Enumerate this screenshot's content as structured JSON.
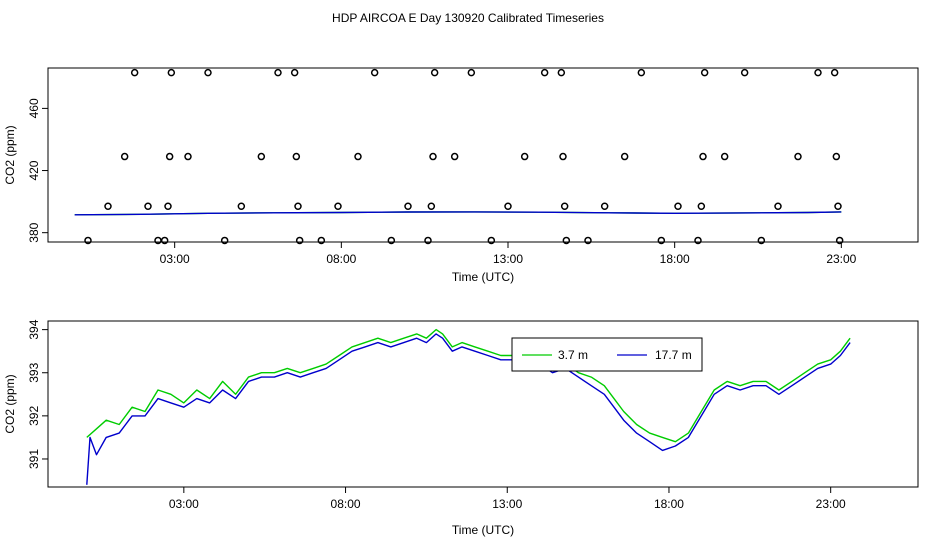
{
  "title": "HDP AIRCOA E  Day 130920  Calibrated Timeseries",
  "colors": {
    "green": "#00cc00",
    "blue": "#0000cc",
    "black": "#000000"
  },
  "chart_data": [
    {
      "type": "scatter",
      "xlabel": "Time (UTC)",
      "ylabel": "CO2 (ppm)",
      "x_ticks": [
        3,
        8,
        13,
        18,
        23
      ],
      "x_tick_labels": [
        "03:00",
        "08:00",
        "13:00",
        "18:00",
        "23:00"
      ],
      "y_ticks": [
        380,
        420,
        460
      ],
      "y_tick_labels": [
        "380",
        "420",
        "460"
      ],
      "xlim": [
        -0.8,
        25.3
      ],
      "ylim": [
        374,
        486
      ],
      "grid": false,
      "points": [
        {
          "x": 0.4,
          "y": 375
        },
        {
          "x": 1.0,
          "y": 397
        },
        {
          "x": 1.5,
          "y": 429
        },
        {
          "x": 1.8,
          "y": 483
        },
        {
          "x": 2.2,
          "y": 397
        },
        {
          "x": 2.5,
          "y": 375
        },
        {
          "x": 2.7,
          "y": 375
        },
        {
          "x": 2.8,
          "y": 397
        },
        {
          "x": 2.85,
          "y": 429
        },
        {
          "x": 2.9,
          "y": 483
        },
        {
          "x": 3.4,
          "y": 429
        },
        {
          "x": 4.0,
          "y": 483
        },
        {
          "x": 4.5,
          "y": 375
        },
        {
          "x": 5.0,
          "y": 397
        },
        {
          "x": 5.6,
          "y": 429
        },
        {
          "x": 6.1,
          "y": 483
        },
        {
          "x": 6.6,
          "y": 483
        },
        {
          "x": 6.65,
          "y": 429
        },
        {
          "x": 6.7,
          "y": 397
        },
        {
          "x": 6.75,
          "y": 375
        },
        {
          "x": 7.4,
          "y": 375
        },
        {
          "x": 7.9,
          "y": 397
        },
        {
          "x": 8.5,
          "y": 429
        },
        {
          "x": 9.0,
          "y": 483
        },
        {
          "x": 9.5,
          "y": 375
        },
        {
          "x": 10.0,
          "y": 397
        },
        {
          "x": 10.6,
          "y": 375
        },
        {
          "x": 10.7,
          "y": 397
        },
        {
          "x": 10.75,
          "y": 429
        },
        {
          "x": 10.8,
          "y": 483
        },
        {
          "x": 11.4,
          "y": 429
        },
        {
          "x": 11.9,
          "y": 483
        },
        {
          "x": 12.5,
          "y": 375
        },
        {
          "x": 13.0,
          "y": 397
        },
        {
          "x": 13.5,
          "y": 429
        },
        {
          "x": 14.1,
          "y": 483
        },
        {
          "x": 14.6,
          "y": 483
        },
        {
          "x": 14.65,
          "y": 429
        },
        {
          "x": 14.7,
          "y": 397
        },
        {
          "x": 14.75,
          "y": 375
        },
        {
          "x": 15.4,
          "y": 375
        },
        {
          "x": 15.9,
          "y": 397
        },
        {
          "x": 16.5,
          "y": 429
        },
        {
          "x": 17.0,
          "y": 483
        },
        {
          "x": 17.6,
          "y": 375
        },
        {
          "x": 18.1,
          "y": 397
        },
        {
          "x": 18.7,
          "y": 375
        },
        {
          "x": 18.8,
          "y": 397
        },
        {
          "x": 18.85,
          "y": 429
        },
        {
          "x": 18.9,
          "y": 483
        },
        {
          "x": 19.5,
          "y": 429
        },
        {
          "x": 20.1,
          "y": 483
        },
        {
          "x": 20.6,
          "y": 375
        },
        {
          "x": 21.1,
          "y": 397
        },
        {
          "x": 21.7,
          "y": 429
        },
        {
          "x": 22.3,
          "y": 483
        },
        {
          "x": 22.8,
          "y": 483
        },
        {
          "x": 22.85,
          "y": 429
        },
        {
          "x": 22.9,
          "y": 397
        },
        {
          "x": 22.95,
          "y": 375
        }
      ],
      "series": [
        {
          "color": "#00cc00",
          "x": [
            0,
            2,
            4,
            6,
            8,
            10,
            12,
            14,
            16,
            18,
            20,
            22,
            23
          ],
          "values": [
            391.5,
            391.8,
            392.5,
            392.8,
            393.0,
            393.3,
            393.4,
            393.2,
            392.8,
            392.5,
            392.7,
            393.0,
            393.4
          ]
        },
        {
          "color": "#0000cc",
          "x": [
            0,
            2,
            4,
            6,
            8,
            10,
            12,
            14,
            16,
            18,
            20,
            22,
            23
          ],
          "values": [
            391.5,
            391.8,
            392.5,
            392.8,
            393.0,
            393.3,
            393.4,
            393.2,
            392.8,
            392.5,
            392.7,
            393.0,
            393.4
          ]
        }
      ]
    },
    {
      "type": "line",
      "xlabel": "Time (UTC)",
      "ylabel": "CO2 (ppm)",
      "x_ticks": [
        3,
        8,
        13,
        18,
        23
      ],
      "x_tick_labels": [
        "03:00",
        "08:00",
        "13:00",
        "18:00",
        "23:00"
      ],
      "y_ticks": [
        391,
        392,
        393,
        394
      ],
      "y_tick_labels": [
        "391",
        "392",
        "393",
        "394"
      ],
      "xlim": [
        -1.2,
        25.7
      ],
      "ylim": [
        390.35,
        394.2
      ],
      "grid": false,
      "legend": {
        "position": "top-center",
        "entries": [
          {
            "label": "3.7 m",
            "color": "#00cc00"
          },
          {
            "label": "17.7 m",
            "color": "#0000cc"
          }
        ]
      },
      "series": [
        {
          "name": "3.7 m",
          "color": "#00cc00",
          "x": [
            0.0,
            0.3,
            0.6,
            1.0,
            1.4,
            1.8,
            2.2,
            2.6,
            3.0,
            3.4,
            3.8,
            4.2,
            4.6,
            5.0,
            5.4,
            5.8,
            6.2,
            6.6,
            7.0,
            7.4,
            7.8,
            8.2,
            8.6,
            9.0,
            9.4,
            9.8,
            10.2,
            10.5,
            10.8,
            11.0,
            11.3,
            11.6,
            12.0,
            12.4,
            12.8,
            13.2,
            13.6,
            14.0,
            14.4,
            14.8,
            15.2,
            15.6,
            16.0,
            16.3,
            16.6,
            17.0,
            17.4,
            17.8,
            18.2,
            18.6,
            19.0,
            19.4,
            19.8,
            20.2,
            20.6,
            21.0,
            21.4,
            21.8,
            22.2,
            22.6,
            23.0,
            23.3,
            23.6
          ],
          "values": [
            391.5,
            391.7,
            391.9,
            391.8,
            392.2,
            392.1,
            392.6,
            392.5,
            392.3,
            392.6,
            392.4,
            392.8,
            392.5,
            392.9,
            393.0,
            393.0,
            393.1,
            393.0,
            393.1,
            393.2,
            393.4,
            393.6,
            393.7,
            393.8,
            393.7,
            393.8,
            393.9,
            393.8,
            394.0,
            393.9,
            393.6,
            393.7,
            393.6,
            393.5,
            393.4,
            393.4,
            393.2,
            393.3,
            393.1,
            393.2,
            393.0,
            392.9,
            392.7,
            392.4,
            392.1,
            391.8,
            391.6,
            391.5,
            391.4,
            391.6,
            392.1,
            392.6,
            392.8,
            392.7,
            392.8,
            392.8,
            392.6,
            392.8,
            393.0,
            393.2,
            393.3,
            393.5,
            393.8
          ]
        },
        {
          "name": "17.7 m",
          "color": "#0000cc",
          "x": [
            0.0,
            0.1,
            0.3,
            0.6,
            1.0,
            1.4,
            1.8,
            2.2,
            2.6,
            3.0,
            3.4,
            3.8,
            4.2,
            4.6,
            5.0,
            5.4,
            5.8,
            6.2,
            6.6,
            7.0,
            7.4,
            7.8,
            8.2,
            8.6,
            9.0,
            9.4,
            9.8,
            10.2,
            10.5,
            10.8,
            11.0,
            11.3,
            11.6,
            12.0,
            12.4,
            12.8,
            13.2,
            13.6,
            14.0,
            14.4,
            14.8,
            15.2,
            15.6,
            16.0,
            16.3,
            16.6,
            17.0,
            17.4,
            17.8,
            18.2,
            18.6,
            19.0,
            19.4,
            19.8,
            20.2,
            20.6,
            21.0,
            21.4,
            21.8,
            22.2,
            22.6,
            23.0,
            23.3,
            23.6
          ],
          "values": [
            390.4,
            391.5,
            391.1,
            391.5,
            391.6,
            392.0,
            392.0,
            392.4,
            392.3,
            392.2,
            392.4,
            392.3,
            392.6,
            392.4,
            392.8,
            392.9,
            392.9,
            393.0,
            392.9,
            393.0,
            393.1,
            393.3,
            393.5,
            393.6,
            393.7,
            393.6,
            393.7,
            393.8,
            393.7,
            393.9,
            393.8,
            393.5,
            393.6,
            393.5,
            393.4,
            393.3,
            393.3,
            393.1,
            393.2,
            393.0,
            393.1,
            392.9,
            392.7,
            392.5,
            392.2,
            391.9,
            391.6,
            391.4,
            391.2,
            391.3,
            391.5,
            392.0,
            392.5,
            392.7,
            392.6,
            392.7,
            392.7,
            392.5,
            392.7,
            392.9,
            393.1,
            393.2,
            393.4,
            393.7
          ]
        }
      ]
    }
  ]
}
